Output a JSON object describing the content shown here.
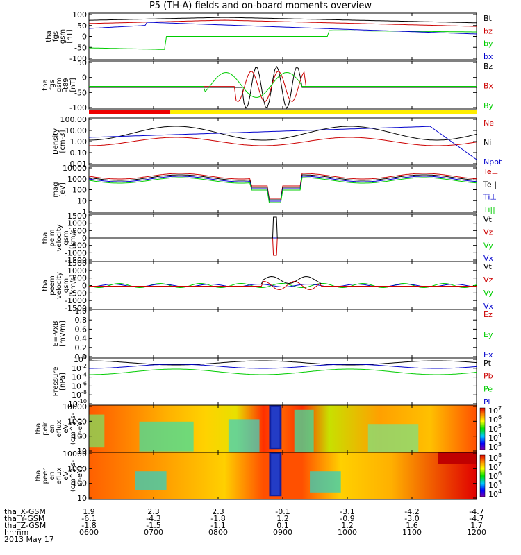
{
  "title": "P5 (TH-A) fields and on-board moments overview",
  "date_label": "2013 May 17",
  "footer": {
    "row_labels": [
      "tha_X-GSM",
      "tha_Y-GSM",
      "tha_Z-GSM",
      "hhmm"
    ],
    "columns": [
      {
        "x": "1.9",
        "y": "-6.1",
        "z": "-1.8",
        "t": "0600"
      },
      {
        "x": "2.3",
        "y": "-4.3",
        "z": "-1.5",
        "t": "0700"
      },
      {
        "x": "2.3",
        "y": "-1.8",
        "z": "-1.1",
        "t": "0800"
      },
      {
        "x": "-0.1",
        "y": "1.2",
        "z": "0.1",
        "t": "0900"
      },
      {
        "x": "-3.1",
        "y": "-0.9",
        "z": "1.2",
        "t": "1000"
      },
      {
        "x": "-4.2",
        "y": "-3.0",
        "z": "1.6",
        "t": "1100"
      },
      {
        "x": "-4.7",
        "y": "-4.7",
        "z": "1.7",
        "t": "1200"
      }
    ]
  },
  "chart_data": [
    {
      "type": "line",
      "ylabel": [
        "tha",
        "fgs",
        "gsm",
        "[nT]"
      ],
      "ylim": [
        -100,
        100
      ],
      "yticks": [
        "100",
        "50",
        "0",
        "-50",
        "-100"
      ],
      "legend": [
        {
          "name": "Bt",
          "color": "#000000"
        },
        {
          "name": "bz",
          "color": "#cc0000"
        },
        {
          "name": "by",
          "color": "#00cc00"
        },
        {
          "name": "bx",
          "color": "#0000cc"
        }
      ]
    },
    {
      "type": "line",
      "ylabel": [
        "tha",
        "fgs",
        "gsm",
        "-t89",
        "[nT]"
      ],
      "ylim": [
        -125,
        50
      ],
      "yticks": [
        "50",
        "0",
        "-50",
        "-100"
      ],
      "legend": [
        {
          "name": "Bz",
          "color": "#000000"
        },
        {
          "name": "Bx",
          "color": "#cc0000"
        },
        {
          "name": "By",
          "color": "#00cc00"
        }
      ]
    },
    {
      "type": "line",
      "ylabel": [
        "Density",
        "[cm-3]"
      ],
      "scale": "log",
      "yticks": [
        "100.00",
        "10.00",
        "1.00",
        "0.10",
        "0.01"
      ],
      "legend": [
        {
          "name": "Ne",
          "color": "#cc0000"
        },
        {
          "name": "Ni",
          "color": "#000000"
        },
        {
          "name": "Npot",
          "color": "#0000cc"
        }
      ]
    },
    {
      "type": "line",
      "ylabel": [
        "mag",
        "[eV]"
      ],
      "scale": "log",
      "yticks": [
        "10000",
        "1000",
        "100",
        "10",
        "1"
      ],
      "legend": [
        {
          "name": "Te⊥",
          "color": "#cc0000"
        },
        {
          "name": "Te||",
          "color": "#000000"
        },
        {
          "name": "Ti⊥",
          "color": "#0000cc"
        },
        {
          "name": "Ti||",
          "color": "#00cc00"
        }
      ]
    },
    {
      "type": "line",
      "ylabel": [
        "tha",
        "peim",
        "velocity",
        "gsm",
        "[km/s]"
      ],
      "ylim": [
        -1500,
        1500
      ],
      "yticks": [
        "1500",
        "1000",
        "500",
        "0",
        "-500",
        "-1000",
        "-1500"
      ],
      "legend": [
        {
          "name": "Vt",
          "color": "#000000"
        },
        {
          "name": "Vz",
          "color": "#cc0000"
        },
        {
          "name": "Vy",
          "color": "#00cc00"
        },
        {
          "name": "Vx",
          "color": "#0000cc"
        }
      ]
    },
    {
      "type": "line",
      "ylabel": [
        "tha",
        "peem",
        "velocity",
        "gsm",
        "[km/s]"
      ],
      "ylim": [
        -1500,
        1500
      ],
      "yticks": [
        "1500",
        "1000",
        "500",
        "0",
        "-500",
        "-1000",
        "-1500"
      ],
      "legend": [
        {
          "name": "Vt",
          "color": "#000000"
        },
        {
          "name": "Vz",
          "color": "#cc0000"
        },
        {
          "name": "Vy",
          "color": "#00cc00"
        },
        {
          "name": "Vx",
          "color": "#0000cc"
        }
      ]
    },
    {
      "type": "line",
      "ylabel": [
        "E=-VxB",
        "[mV/m]"
      ],
      "ylim": [
        0,
        1
      ],
      "yticks": [
        "1.0",
        "0.8",
        "0.6",
        "0.4",
        "0.2",
        "0.0"
      ],
      "legend": [
        {
          "name": "Ez",
          "color": "#cc0000"
        },
        {
          "name": "Ey",
          "color": "#00cc00"
        },
        {
          "name": "Ex",
          "color": "#0000cc"
        }
      ]
    },
    {
      "type": "line",
      "ylabel": [
        "Pressure",
        "[nPa]"
      ],
      "scale": "log",
      "yticks": [
        "10^0",
        "10^-2",
        "10^-4",
        "10^-6",
        "10^-8",
        "10^-10"
      ],
      "legend": [
        {
          "name": "Pt",
          "color": "#000000"
        },
        {
          "name": "Pb",
          "color": "#cc0000"
        },
        {
          "name": "Pe",
          "color": "#00cc00"
        },
        {
          "name": "Pi",
          "color": "#0000cc"
        }
      ]
    },
    {
      "type": "heatmap",
      "ylabel": [
        "tha",
        "peir",
        "en",
        "eflux",
        "eV",
        "(cm^2-s-",
        "sr-eV)"
      ],
      "scale": "log",
      "yticks": [
        "10000",
        "1000",
        "100",
        "10"
      ],
      "colorbar_ticks": [
        "10^7",
        "10^6",
        "10^5",
        "10^4",
        "10^3"
      ]
    },
    {
      "type": "heatmap",
      "ylabel": [
        "tha",
        "peer",
        "en",
        "eflux",
        "eV",
        "(cm^2-s-",
        "sr-eV)"
      ],
      "scale": "log",
      "yticks": [
        "10000",
        "1000",
        "100",
        "10"
      ],
      "colorbar_ticks": [
        "10^8",
        "10^7",
        "10^6",
        "10^5",
        "10^4"
      ]
    }
  ]
}
